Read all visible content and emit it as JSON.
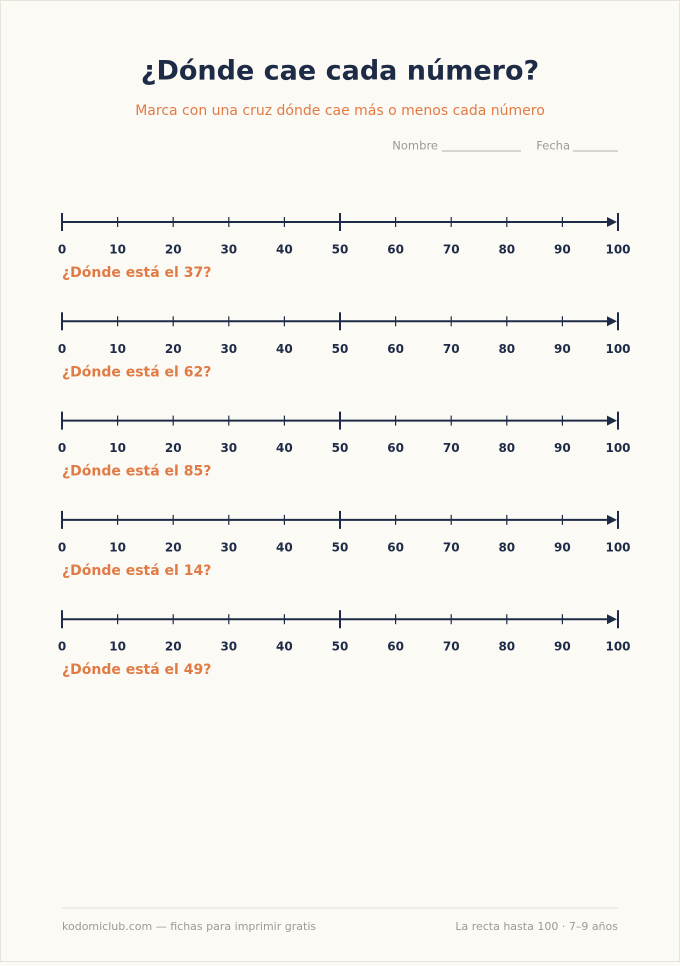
{
  "header": {
    "title": "¿Dónde cae cada número?",
    "subtitle": "Marca con una cruz dónde cae más o menos cada número",
    "name_label": "Nombre",
    "date_label": "Fecha"
  },
  "number_lines": {
    "ticks": [
      0,
      10,
      20,
      30,
      40,
      50,
      60,
      70,
      80,
      90,
      100
    ],
    "questions": [
      "¿Dónde está el 37?",
      "¿Dónde está el 62?",
      "¿Dónde está el 85?",
      "¿Dónde está el 14?",
      "¿Dónde está el 49?"
    ]
  },
  "footer": {
    "left": "kodomiclub.com — fichas para imprimir gratis",
    "right": "La recta hasta 100 · 7–9 años"
  }
}
